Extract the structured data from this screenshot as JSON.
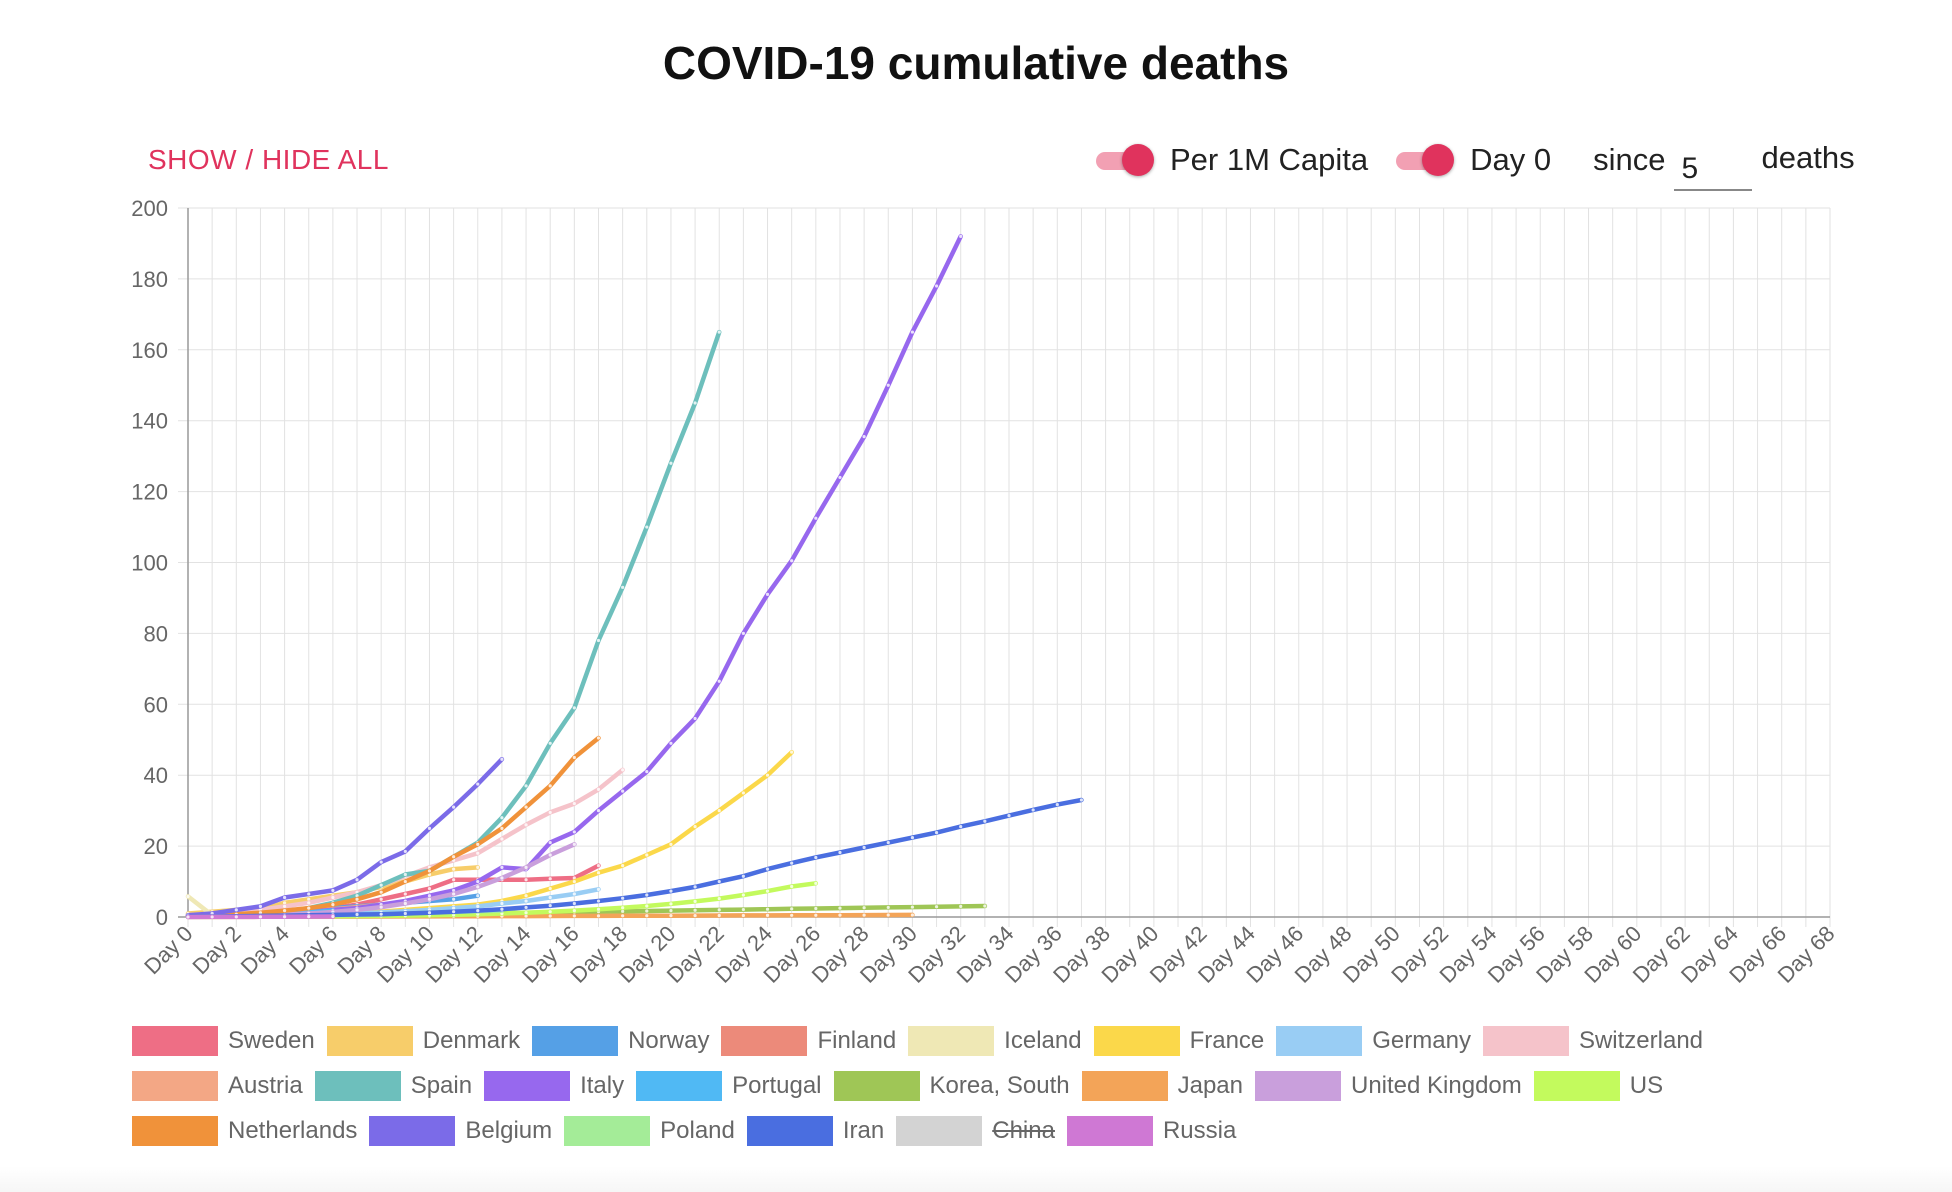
{
  "title": "COVID-19 cumulative deaths",
  "controls": {
    "show_hide_all": "SHOW / HIDE ALL",
    "per_capita_label": "Per 1M Capita",
    "per_capita_on": true,
    "day0_label": "Day 0",
    "day0_on": true,
    "since_label": "since",
    "since_value": "5",
    "deaths_label": "deaths"
  },
  "colors": {
    "accent": "#e0335d",
    "accent_light": "#f2a0b3",
    "grid": "#e0e0e0"
  },
  "chart_data": {
    "type": "line",
    "title": "COVID-19 cumulative deaths",
    "xlabel": "",
    "ylabel": "",
    "ylim": [
      0,
      200
    ],
    "yticks": [
      0,
      20,
      40,
      60,
      80,
      100,
      120,
      140,
      160,
      180,
      200
    ],
    "xlim": [
      0,
      68
    ],
    "xticks": [
      "Day 0",
      "Day 2",
      "Day 4",
      "Day 6",
      "Day 8",
      "Day 10",
      "Day 12",
      "Day 14",
      "Day 16",
      "Day 18",
      "Day 20",
      "Day 22",
      "Day 24",
      "Day 26",
      "Day 28",
      "Day 30",
      "Day 32",
      "Day 34",
      "Day 36",
      "Day 38",
      "Day 40",
      "Day 42",
      "Day 44",
      "Day 46",
      "Day 48",
      "Day 50",
      "Day 52",
      "Day 54",
      "Day 56",
      "Day 58",
      "Day 60",
      "Day 62",
      "Day 64",
      "Day 66",
      "Day 68"
    ],
    "grid": true,
    "legend_position": "bottom",
    "series": [
      {
        "name": "Sweden",
        "color": "#ee6e85",
        "hidden": false,
        "values": [
          0.5,
          0.5,
          0.7,
          1,
          1.5,
          2,
          2.5,
          3.5,
          5,
          6.5,
          8,
          10.5,
          10.5,
          10.5,
          10.5,
          10.8,
          11,
          14.5
        ]
      },
      {
        "name": "Denmark",
        "color": "#f7cd6a",
        "hidden": false,
        "values": [
          1,
          1.5,
          2,
          2,
          4,
          5,
          6,
          7,
          8.5,
          10,
          12,
          13.5,
          14
        ]
      },
      {
        "name": "Norway",
        "color": "#55a0e6",
        "hidden": false,
        "values": [
          0.5,
          0.7,
          1,
          1.2,
          1.5,
          2,
          2.5,
          3,
          3.5,
          4,
          4.5,
          5,
          6
        ]
      },
      {
        "name": "Finland",
        "color": "#ec8a7a",
        "hidden": false,
        "values": [
          0.3,
          0.4,
          0.5,
          0.7,
          1,
          1.3,
          1.7,
          2.2
        ]
      },
      {
        "name": "Iceland",
        "color": "#efe8b5",
        "hidden": false,
        "values": [
          5.8,
          0.5
        ]
      },
      {
        "name": "France",
        "color": "#fbd84a",
        "hidden": false,
        "values": [
          0.1,
          0.2,
          0.3,
          0.4,
          0.5,
          0.7,
          0.9,
          1.2,
          1.5,
          2,
          2.5,
          3,
          3.5,
          4.5,
          6,
          8,
          10,
          12.5,
          14.5,
          17.5,
          20.5,
          25.5,
          30,
          35,
          40,
          46.5
        ]
      },
      {
        "name": "Germany",
        "color": "#99cdf4",
        "hidden": false,
        "values": [
          0.1,
          0.2,
          0.3,
          0.4,
          0.5,
          0.6,
          0.8,
          1,
          1.3,
          1.6,
          2,
          2.5,
          3,
          3.8,
          4.5,
          5.5,
          6.5,
          7.8
        ]
      },
      {
        "name": "Switzerland",
        "color": "#f5c3ca",
        "hidden": false,
        "values": [
          0.5,
          1,
          1.5,
          2,
          3,
          4,
          5.5,
          7,
          9,
          11.5,
          14,
          16,
          18,
          22,
          26,
          29.5,
          32,
          36,
          41.5
        ]
      },
      {
        "name": "Austria",
        "color": "#f3a785",
        "hidden": false,
        "values": [
          0.3,
          0.5,
          0.7,
          1,
          1.3,
          1.7,
          2.2,
          2.8,
          3.5,
          4.3,
          5.3,
          6.5
        ]
      },
      {
        "name": "Spain",
        "color": "#6dbfbc",
        "hidden": false,
        "values": [
          0.1,
          0.2,
          0.4,
          0.8,
          1.5,
          2.5,
          4,
          6,
          9,
          12,
          13,
          17,
          21,
          28,
          37,
          49,
          59,
          78,
          93,
          110,
          128,
          145,
          165
        ]
      },
      {
        "name": "Italy",
        "color": "#9768ee",
        "hidden": false,
        "values": [
          0.1,
          0.2,
          0.4,
          0.7,
          1,
          1.5,
          2,
          2.5,
          3.5,
          4.5,
          6,
          7.5,
          10,
          14,
          13.5,
          21,
          24,
          30,
          35.5,
          41,
          49,
          56,
          66.5,
          80,
          91,
          100.5,
          112.5,
          124,
          135.5,
          150,
          165,
          178,
          192
        ]
      },
      {
        "name": "Portugal",
        "color": "#50b9f4",
        "hidden": false,
        "values": [
          0.1,
          0.2,
          0.4,
          0.6,
          0.9,
          1.3,
          1.8
        ]
      },
      {
        "name": "Korea, South",
        "color": "#9fc656",
        "hidden": false,
        "values": [
          0.1,
          0.15,
          0.2,
          0.3,
          0.35,
          0.4,
          0.5,
          0.55,
          0.6,
          0.7,
          0.8,
          0.9,
          1,
          1.1,
          1.2,
          1.3,
          1.4,
          1.5,
          1.6,
          1.7,
          1.8,
          1.9,
          2,
          2.1,
          2.2,
          2.3,
          2.4,
          2.5,
          2.6,
          2.7,
          2.8,
          2.9,
          3,
          3.1
        ]
      },
      {
        "name": "Japan",
        "color": "#f3a458",
        "hidden": false,
        "values": [
          0.02,
          0.03,
          0.04,
          0.05,
          0.06,
          0.08,
          0.1,
          0.12,
          0.14,
          0.16,
          0.18,
          0.2,
          0.22,
          0.24,
          0.26,
          0.28,
          0.3,
          0.32,
          0.34,
          0.36,
          0.38,
          0.4,
          0.42,
          0.44,
          0.46,
          0.48,
          0.5,
          0.52,
          0.54,
          0.56,
          0.58
        ]
      },
      {
        "name": "United Kingdom",
        "color": "#c99fdc",
        "hidden": false,
        "values": [
          0.1,
          0.2,
          0.3,
          0.5,
          0.7,
          1,
          1.4,
          2,
          2.8,
          3.8,
          5,
          6.5,
          8.5,
          11,
          14,
          17.5,
          20.5
        ]
      },
      {
        "name": "US",
        "color": "#c3fa5d",
        "hidden": false,
        "values": [
          0.02,
          0.04,
          0.06,
          0.08,
          0.1,
          0.15,
          0.2,
          0.25,
          0.3,
          0.4,
          0.5,
          0.6,
          0.8,
          1,
          1.2,
          1.5,
          1.8,
          2.2,
          2.6,
          3.1,
          3.7,
          4.4,
          5.2,
          6.2,
          7.3,
          8.6,
          9.5
        ]
      },
      {
        "name": "Netherlands",
        "color": "#f0923a",
        "hidden": false,
        "values": [
          0.3,
          0.5,
          0.8,
          1.2,
          1.8,
          2.5,
          3.5,
          5,
          7,
          10,
          13,
          17,
          20.5,
          25,
          31,
          37,
          45,
          50.5
        ]
      },
      {
        "name": "Belgium",
        "color": "#7b6be8",
        "hidden": false,
        "values": [
          0.5,
          1,
          2,
          3,
          5.5,
          6.5,
          7.5,
          10.5,
          15.5,
          18.5,
          25,
          31,
          37.5,
          44.5
        ]
      },
      {
        "name": "Poland",
        "color": "#a4ec98",
        "hidden": false,
        "values": [
          0.05,
          0.1,
          0.15,
          0.2,
          0.3,
          0.4,
          0.5,
          0.6,
          0.8,
          1,
          1.2,
          1.4,
          1.6,
          1.8
        ]
      },
      {
        "name": "Iran",
        "color": "#4a6ee0",
        "hidden": false,
        "values": [
          0.1,
          0.15,
          0.2,
          0.3,
          0.4,
          0.5,
          0.6,
          0.7,
          0.8,
          1,
          1.2,
          1.5,
          1.8,
          2.2,
          2.7,
          3.2,
          3.8,
          4.5,
          5.3,
          6.2,
          7.3,
          8.5,
          10,
          11.5,
          13.5,
          15.2,
          16.8,
          18.2,
          19.6,
          21,
          22.4,
          23.8,
          25.5,
          27,
          28.6,
          30.2,
          31.7,
          33
        ]
      },
      {
        "name": "China",
        "color": "#d3d3d3",
        "hidden": true,
        "values": []
      },
      {
        "name": "Russia",
        "color": "#cf78d4",
        "hidden": false,
        "values": [
          0.01,
          0.02,
          0.03,
          0.05,
          0.07,
          0.1,
          0.14
        ]
      }
    ]
  }
}
